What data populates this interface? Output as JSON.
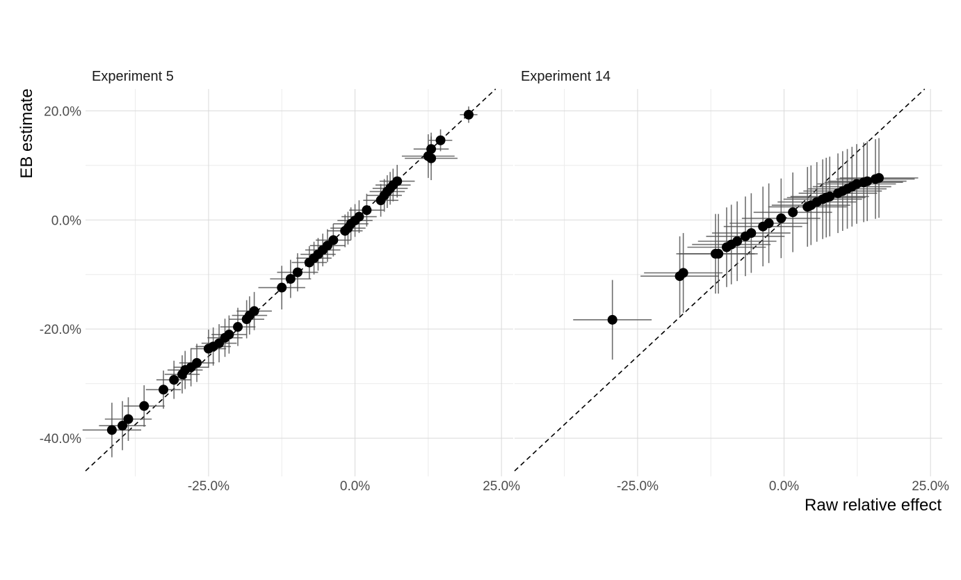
{
  "chart_data": {
    "type": "scatter",
    "xlabel": "Raw relative effect",
    "ylabel": "EB estimate",
    "grid": true,
    "legend": "none",
    "colors": {
      "point": "#000000",
      "errorbar": "#555555",
      "grid_major": "#d9d9d9",
      "grid_minor": "#ebebeb",
      "reference_line": "#000000"
    },
    "panels": [
      {
        "title": "Experiment 5",
        "xlim": [
          -0.46,
          0.27
        ],
        "ylim": [
          -0.47,
          0.24
        ],
        "x_ticks": [
          {
            "value": -0.25,
            "label": "-25.0%"
          },
          {
            "value": 0.0,
            "label": "0.0%"
          },
          {
            "value": 0.25,
            "label": "25.0%"
          }
        ],
        "y_ticks": [
          {
            "value": 0.2,
            "label": "20.0%"
          },
          {
            "value": 0.0,
            "label": "0.0%"
          },
          {
            "value": -0.2,
            "label": "-20.0%"
          },
          {
            "value": -0.4,
            "label": "-40.0%"
          }
        ],
        "reference_line": "y = x",
        "points": [
          {
            "x": -0.415,
            "y": -0.385,
            "xerr": 0.05,
            "yerr": 0.05
          },
          {
            "x": -0.397,
            "y": -0.377,
            "xerr": 0.04,
            "yerr": 0.045
          },
          {
            "x": -0.387,
            "y": -0.365,
            "xerr": 0.04,
            "yerr": 0.04
          },
          {
            "x": -0.36,
            "y": -0.341,
            "xerr": 0.035,
            "yerr": 0.038
          },
          {
            "x": -0.327,
            "y": -0.311,
            "xerr": 0.03,
            "yerr": 0.035
          },
          {
            "x": -0.309,
            "y": -0.293,
            "xerr": 0.03,
            "yerr": 0.035
          },
          {
            "x": -0.295,
            "y": -0.283,
            "xerr": 0.03,
            "yerr": 0.035
          },
          {
            "x": -0.29,
            "y": -0.275,
            "xerr": 0.03,
            "yerr": 0.035
          },
          {
            "x": -0.28,
            "y": -0.27,
            "xerr": 0.03,
            "yerr": 0.035
          },
          {
            "x": -0.27,
            "y": -0.262,
            "xerr": 0.03,
            "yerr": 0.035
          },
          {
            "x": -0.25,
            "y": -0.236,
            "xerr": 0.03,
            "yerr": 0.035
          },
          {
            "x": -0.242,
            "y": -0.232,
            "xerr": 0.03,
            "yerr": 0.035
          },
          {
            "x": -0.232,
            "y": -0.226,
            "xerr": 0.03,
            "yerr": 0.035
          },
          {
            "x": -0.222,
            "y": -0.216,
            "xerr": 0.03,
            "yerr": 0.035
          },
          {
            "x": -0.215,
            "y": -0.21,
            "xerr": 0.03,
            "yerr": 0.035
          },
          {
            "x": -0.2,
            "y": -0.196,
            "xerr": 0.03,
            "yerr": 0.035
          },
          {
            "x": -0.185,
            "y": -0.182,
            "xerr": 0.03,
            "yerr": 0.035
          },
          {
            "x": -0.18,
            "y": -0.175,
            "xerr": 0.03,
            "yerr": 0.035
          },
          {
            "x": -0.172,
            "y": -0.167,
            "xerr": 0.03,
            "yerr": 0.035
          },
          {
            "x": -0.125,
            "y": -0.124,
            "xerr": 0.04,
            "yerr": 0.04
          },
          {
            "x": -0.11,
            "y": -0.108,
            "xerr": 0.035,
            "yerr": 0.035
          },
          {
            "x": -0.098,
            "y": -0.096,
            "xerr": 0.035,
            "yerr": 0.035
          },
          {
            "x": -0.078,
            "y": -0.078,
            "xerr": 0.03,
            "yerr": 0.03
          },
          {
            "x": -0.07,
            "y": -0.07,
            "xerr": 0.03,
            "yerr": 0.03
          },
          {
            "x": -0.063,
            "y": -0.063,
            "xerr": 0.03,
            "yerr": 0.03
          },
          {
            "x": -0.055,
            "y": -0.055,
            "xerr": 0.03,
            "yerr": 0.03
          },
          {
            "x": -0.047,
            "y": -0.047,
            "xerr": 0.03,
            "yerr": 0.03
          },
          {
            "x": -0.037,
            "y": -0.037,
            "xerr": 0.03,
            "yerr": 0.03
          },
          {
            "x": -0.017,
            "y": -0.02,
            "xerr": 0.03,
            "yerr": 0.03
          },
          {
            "x": -0.012,
            "y": -0.015,
            "xerr": 0.03,
            "yerr": 0.03
          },
          {
            "x": -0.007,
            "y": -0.007,
            "xerr": 0.03,
            "yerr": 0.03
          },
          {
            "x": 0.0,
            "y": -0.001,
            "xerr": 0.03,
            "yerr": 0.03
          },
          {
            "x": 0.007,
            "y": 0.006,
            "xerr": 0.03,
            "yerr": 0.03
          },
          {
            "x": 0.02,
            "y": 0.018,
            "xerr": 0.03,
            "yerr": 0.03
          },
          {
            "x": 0.044,
            "y": 0.036,
            "xerr": 0.03,
            "yerr": 0.03
          },
          {
            "x": 0.05,
            "y": 0.045,
            "xerr": 0.03,
            "yerr": 0.03
          },
          {
            "x": 0.055,
            "y": 0.052,
            "xerr": 0.03,
            "yerr": 0.03
          },
          {
            "x": 0.06,
            "y": 0.058,
            "xerr": 0.03,
            "yerr": 0.03
          },
          {
            "x": 0.065,
            "y": 0.064,
            "xerr": 0.03,
            "yerr": 0.03
          },
          {
            "x": 0.072,
            "y": 0.071,
            "xerr": 0.03,
            "yerr": 0.03
          },
          {
            "x": 0.125,
            "y": 0.117,
            "xerr": 0.045,
            "yerr": 0.04
          },
          {
            "x": 0.13,
            "y": 0.113,
            "xerr": 0.045,
            "yerr": 0.04
          },
          {
            "x": 0.13,
            "y": 0.13,
            "xerr": 0.03,
            "yerr": 0.03
          },
          {
            "x": 0.146,
            "y": 0.146,
            "xerr": 0.02,
            "yerr": 0.02
          },
          {
            "x": 0.194,
            "y": 0.193,
            "xerr": 0.015,
            "yerr": 0.015
          }
        ]
      },
      {
        "title": "Experiment 14",
        "xlim": [
          -0.46,
          0.27
        ],
        "ylim": [
          -0.47,
          0.24
        ],
        "x_ticks": [
          {
            "value": -0.25,
            "label": "-25.0%"
          },
          {
            "value": 0.0,
            "label": "0.0%"
          },
          {
            "value": 0.25,
            "label": "25.0%"
          }
        ],
        "y_ticks": [
          {
            "value": 0.2,
            "label": ""
          },
          {
            "value": 0.0,
            "label": ""
          },
          {
            "value": -0.2,
            "label": ""
          },
          {
            "value": -0.4,
            "label": ""
          }
        ],
        "reference_line": "y = x",
        "points": [
          {
            "x": -0.293,
            "y": -0.183,
            "xerr": 0.067,
            "yerr": 0.073
          },
          {
            "x": -0.178,
            "y": -0.103,
            "xerr": 0.067,
            "yerr": 0.073
          },
          {
            "x": -0.172,
            "y": -0.097,
            "xerr": 0.067,
            "yerr": 0.073
          },
          {
            "x": -0.117,
            "y": -0.062,
            "xerr": 0.067,
            "yerr": 0.073
          },
          {
            "x": -0.112,
            "y": -0.062,
            "xerr": 0.067,
            "yerr": 0.073
          },
          {
            "x": -0.098,
            "y": -0.05,
            "xerr": 0.067,
            "yerr": 0.073
          },
          {
            "x": -0.09,
            "y": -0.045,
            "xerr": 0.067,
            "yerr": 0.073
          },
          {
            "x": -0.08,
            "y": -0.039,
            "xerr": 0.067,
            "yerr": 0.073
          },
          {
            "x": -0.066,
            "y": -0.03,
            "xerr": 0.067,
            "yerr": 0.073
          },
          {
            "x": -0.056,
            "y": -0.024,
            "xerr": 0.067,
            "yerr": 0.073
          },
          {
            "x": -0.036,
            "y": -0.012,
            "xerr": 0.067,
            "yerr": 0.073
          },
          {
            "x": -0.026,
            "y": -0.006,
            "xerr": 0.067,
            "yerr": 0.073
          },
          {
            "x": -0.005,
            "y": 0.003,
            "xerr": 0.067,
            "yerr": 0.073
          },
          {
            "x": 0.015,
            "y": 0.014,
            "xerr": 0.067,
            "yerr": 0.073
          },
          {
            "x": 0.04,
            "y": 0.024,
            "xerr": 0.067,
            "yerr": 0.073
          },
          {
            "x": 0.046,
            "y": 0.027,
            "xerr": 0.067,
            "yerr": 0.073
          },
          {
            "x": 0.056,
            "y": 0.033,
            "xerr": 0.067,
            "yerr": 0.073
          },
          {
            "x": 0.066,
            "y": 0.038,
            "xerr": 0.067,
            "yerr": 0.073
          },
          {
            "x": 0.072,
            "y": 0.041,
            "xerr": 0.067,
            "yerr": 0.073
          },
          {
            "x": 0.078,
            "y": 0.043,
            "xerr": 0.067,
            "yerr": 0.073
          },
          {
            "x": 0.092,
            "y": 0.049,
            "xerr": 0.067,
            "yerr": 0.073
          },
          {
            "x": 0.1,
            "y": 0.053,
            "xerr": 0.067,
            "yerr": 0.073
          },
          {
            "x": 0.108,
            "y": 0.057,
            "xerr": 0.067,
            "yerr": 0.073
          },
          {
            "x": 0.116,
            "y": 0.061,
            "xerr": 0.067,
            "yerr": 0.073
          },
          {
            "x": 0.124,
            "y": 0.066,
            "xerr": 0.067,
            "yerr": 0.073
          },
          {
            "x": 0.136,
            "y": 0.069,
            "xerr": 0.067,
            "yerr": 0.073
          },
          {
            "x": 0.142,
            "y": 0.071,
            "xerr": 0.067,
            "yerr": 0.073
          },
          {
            "x": 0.156,
            "y": 0.075,
            "xerr": 0.067,
            "yerr": 0.073
          },
          {
            "x": 0.162,
            "y": 0.077,
            "xerr": 0.067,
            "yerr": 0.073
          }
        ]
      }
    ]
  }
}
